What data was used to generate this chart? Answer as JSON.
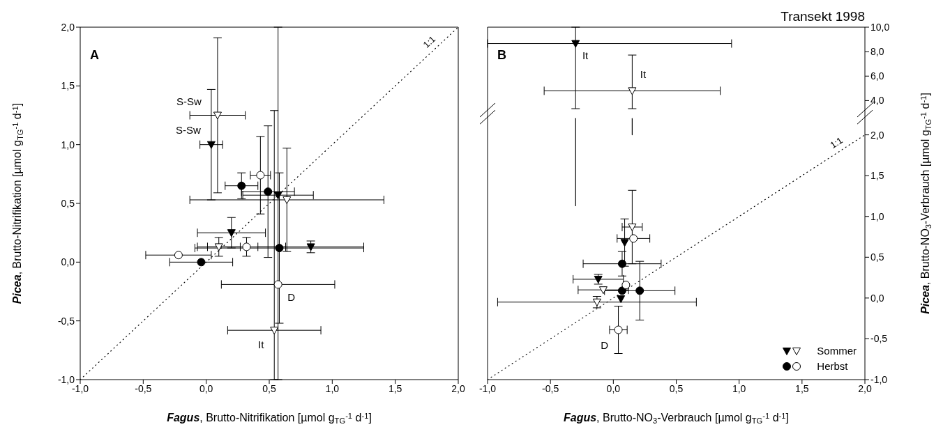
{
  "chart_data": [
    {
      "type": "scatter",
      "xlabel": "Fagus, Brutto-Nitrifikation [µmol g$_{TG}$$^{-1}$ d$^{-1}$]",
      "ylabel": "Picea, Brutto-Nitrifikation [µmol g$_{TG}$$^{-1}$ d$^{-1}$]",
      "xlim": [
        -1,
        2
      ],
      "ylim": [
        -1,
        2
      ],
      "xticks": [
        {
          "value": -1,
          "label": "-1,0"
        },
        {
          "value": -0.5,
          "label": "-0,5"
        },
        {
          "value": 0,
          "label": "0,0"
        },
        {
          "value": 0.5,
          "label": "0,5"
        },
        {
          "value": 1,
          "label": "1,0"
        },
        {
          "value": 1.5,
          "label": "1,5"
        },
        {
          "value": 2,
          "label": "2,0"
        }
      ],
      "yticks": [
        {
          "value": -1,
          "label": "-1,0"
        },
        {
          "value": -0.5,
          "label": "-0,5"
        },
        {
          "value": 0,
          "label": "0,0"
        },
        {
          "value": 0.5,
          "label": "0,5"
        },
        {
          "value": 1,
          "label": "1,0"
        },
        {
          "value": 1.5,
          "label": "1,5"
        },
        {
          "value": 2,
          "label": "2,0"
        }
      ],
      "annotations": [
        "A",
        "1:1",
        {
          "text": "S-Sw",
          "x": 0.09,
          "y": 1.25
        },
        {
          "text": "S-Sw",
          "x": 0.04,
          "y": 1.0
        },
        {
          "text": "It",
          "x": 0.54,
          "y": -0.58
        },
        {
          "text": "D",
          "x": 0.57,
          "y": -0.19
        }
      ],
      "series": [
        {
          "type": "line",
          "x": [
            -1,
            2
          ],
          "values": [
            -1,
            2
          ],
          "color": "#000000",
          "line_style": "dotted"
        },
        {
          "color": "#000000",
          "marker": "triangle",
          "x": [
            0.04,
            0.57,
            0.2,
            0.83
          ],
          "values": [
            1.0,
            0.57,
            0.25,
            0.13
          ],
          "errors": [
            0.47,
            [
              -1.0,
              2.0
            ],
            0.13,
            0.05
          ],
          "xerrors": [
            0.09,
            0.28,
            0.27,
            0.42
          ]
        },
        {
          "color": "#ffffff",
          "marker": "triangle",
          "x": [
            0.09,
            0.64,
            0.1,
            0.54
          ],
          "values": [
            1.25,
            0.53,
            0.13,
            -0.58
          ],
          "errors": [
            0.66,
            0.44,
            0.08,
            [
              -1.0,
              1.29
            ]
          ],
          "xerrors": [
            0.22,
            0.77,
            0.17,
            0.37
          ]
        },
        {
          "color": "#000000",
          "marker": "circle",
          "x": [
            0.28,
            0.49,
            0.58,
            -0.04
          ],
          "values": [
            0.65,
            0.6,
            0.12,
            0.0
          ],
          "errors": [
            0.11,
            0.56,
            0.64,
            null
          ],
          "xerrors": [
            0.13,
            0.21,
            0.67,
            0.25
          ]
        },
        {
          "color": "#ffffff",
          "marker": "circle",
          "x": [
            0.43,
            0.32,
            -0.22,
            0.57
          ],
          "values": [
            0.74,
            0.13,
            0.06,
            -0.19
          ],
          "errors": [
            0.33,
            0.08,
            null,
            null
          ],
          "xerrors": [
            0.08,
            0.31,
            0.26,
            0.45
          ]
        }
      ]
    },
    {
      "type": "scatter",
      "title": "Transekt 1998",
      "xlabel": "Fagus, Brutto-NO$_{3}$-Verbrauch [µmol g$_{TG}$$^{-1}$ d$^{-1}$]",
      "y2label": "Picea, Brutto-NO$_{3}$-Verbrauch [µmol g$_{TG}$$^{-1}$ d$^{-1}$]",
      "xlim": [
        -1,
        2
      ],
      "y2lim": [
        -1,
        3.32
      ],
      "y3lim": [
        -18.8,
        10
      ],
      "xticks": [
        {
          "value": -1,
          "label": "-1,0"
        },
        {
          "value": -0.5,
          "label": "-0,5"
        },
        {
          "value": 0,
          "label": "0,0"
        },
        {
          "value": 0.5,
          "label": "0,5"
        },
        {
          "value": 1,
          "label": "1,0"
        },
        {
          "value": 1.5,
          "label": "1,5"
        },
        {
          "value": 2,
          "label": "2,0"
        }
      ],
      "y2ticks": [
        {
          "value": -1,
          "label": "-1,0"
        },
        {
          "value": -0.5,
          "label": "-0,5"
        },
        {
          "value": 0,
          "label": "0,0"
        },
        {
          "value": 0.5,
          "label": "0,5"
        },
        {
          "value": 1,
          "label": "1,0"
        },
        {
          "value": 1.5,
          "label": "1,5"
        },
        {
          "value": 2,
          "label": "2,0"
        }
      ],
      "y3ticks": [
        {
          "value": 4,
          "label": "4,0"
        },
        {
          "value": 6,
          "label": "6,0"
        },
        {
          "value": 8,
          "label": "8,0"
        },
        {
          "value": 10,
          "label": "10,0"
        }
      ],
      "legend": "bottom right",
      "annotations": [
        "B",
        "1:1",
        "It",
        "It",
        "D"
      ],
      "series": [
        {
          "type": "line",
          "axis": "y2",
          "x": [
            -1,
            2
          ],
          "values": [
            -1,
            2
          ],
          "color": "#000000",
          "line_style": "dotted"
        },
        {
          "type": "line",
          "axis": "y2",
          "x": [
            -0.3,
            -0.3
          ],
          "values": [
            1.13,
            2.2
          ],
          "color": "#000000",
          "line_style": "solid"
        },
        {
          "type": "line",
          "axis": "y2",
          "x": [
            0.15,
            0.15
          ],
          "values": [
            2.0,
            2.2
          ],
          "color": "#000000",
          "line_style": "solid"
        },
        {
          "axis": "y2",
          "color": "#000000",
          "marker": "triangle",
          "x": [
            0.09,
            -0.12,
            0.06
          ],
          "values": [
            0.68,
            0.23,
            -0.01
          ],
          "errors": [
            0.29,
            0.06,
            null
          ],
          "xerrors": [
            null,
            0.2,
            null
          ]
        },
        {
          "name": "Sommer",
          "axis": "y2",
          "color": "#ffffff",
          "marker": "triangle",
          "x": [
            0.15,
            -0.08,
            -0.13
          ],
          "values": [
            0.87,
            0.1,
            -0.05
          ],
          "errors": [
            0.45,
            null,
            0.07
          ],
          "xerrors": [
            0.08,
            0.2,
            0.79
          ]
        },
        {
          "axis": "y3",
          "color": "#000000",
          "marker": "triangle",
          "x": [
            -0.3
          ],
          "values": [
            8.66
          ],
          "errors": [
            [
              3.34,
              10.0
            ]
          ],
          "xerrors": [
            [
              -1.0,
              0.94
            ]
          ]
        },
        {
          "axis": "y3",
          "color": "#ffffff",
          "marker": "triangle",
          "x": [
            0.15
          ],
          "values": [
            4.8
          ],
          "errors": [
            [
              3.34,
              7.72
            ]
          ],
          "xerrors": [
            0.7
          ]
        },
        {
          "axis": "y2",
          "color": "#000000",
          "marker": "circle",
          "x": [
            0.07,
            0.07,
            0.21
          ],
          "values": [
            0.42,
            0.09,
            0.09
          ],
          "errors": [
            0.15,
            null,
            0.36
          ],
          "xerrors": [
            0.31,
            null,
            0.28
          ]
        },
        {
          "name": "Herbst",
          "axis": "y2",
          "color": "#ffffff",
          "marker": "circle",
          "x": [
            0.16,
            0.1,
            0.04
          ],
          "values": [
            0.73,
            0.16,
            -0.39
          ],
          "errors": [
            null,
            null,
            0.29
          ],
          "xerrors": [
            0.13,
            null,
            0.07
          ]
        }
      ]
    }
  ]
}
